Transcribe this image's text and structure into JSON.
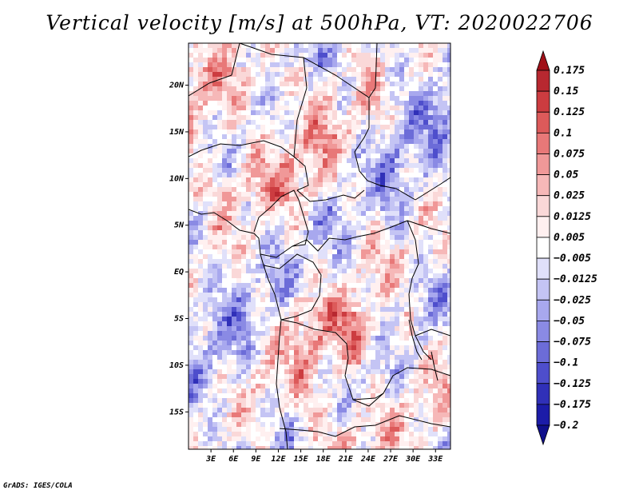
{
  "title": "Vertical velocity [m/s] at 500hPa, VT: 2020022706",
  "credit": "GrADS: IGES/COLA",
  "map": {
    "lat_labels": [
      "20N",
      "15N",
      "10N",
      "5N",
      "EQ",
      "5S",
      "10S",
      "15S"
    ],
    "lat_values": [
      20,
      15,
      10,
      5,
      0,
      -5,
      -10,
      -15
    ],
    "lon_labels": [
      "3E",
      "6E",
      "9E",
      "12E",
      "15E",
      "18E",
      "21E",
      "24E",
      "27E",
      "30E",
      "33E"
    ],
    "lon_values": [
      3,
      6,
      9,
      12,
      15,
      18,
      21,
      24,
      27,
      30,
      33
    ],
    "lon_range": [
      0,
      35
    ],
    "lat_range": [
      -19,
      24.5
    ]
  },
  "colorbar": {
    "levels": [
      "0.175",
      "0.15",
      "0.125",
      "0.1",
      "0.075",
      "0.05",
      "0.025",
      "0.0125",
      "0.005",
      "-0.005",
      "-0.0125",
      "-0.025",
      "-0.05",
      "-0.075",
      "-0.1",
      "-0.125",
      "-0.175",
      "-0.2"
    ],
    "colors": [
      "#a01018",
      "#b82830",
      "#cc3c40",
      "#dc5a5a",
      "#e87878",
      "#f09898",
      "#f6b8b8",
      "#fad8d8",
      "#fff0f0",
      "#ffffff",
      "#e0e0fa",
      "#c4c4f4",
      "#a8a8ee",
      "#8a8ae4",
      "#6c6cd8",
      "#4e4ecc",
      "#3030b8",
      "#1c1ca8",
      "#10108c"
    ]
  }
}
